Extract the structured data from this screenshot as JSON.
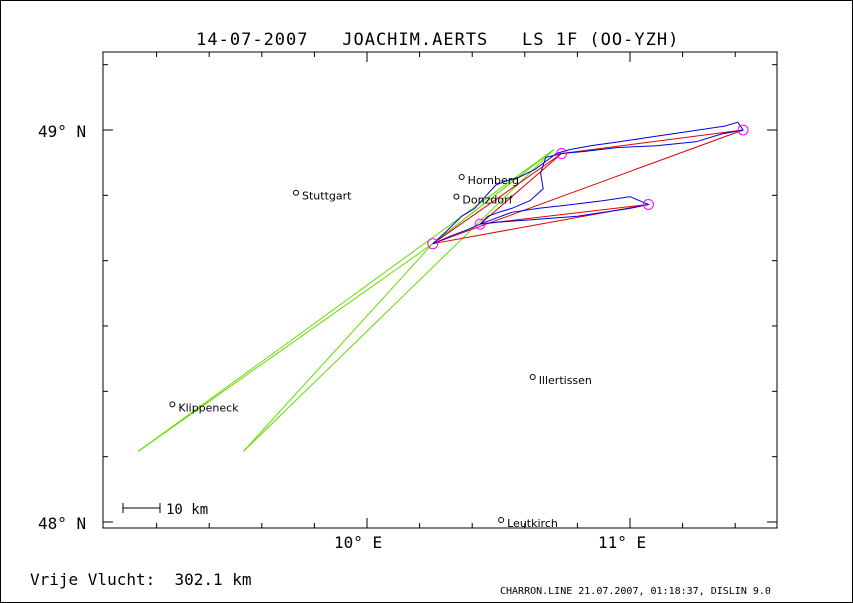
{
  "header": {
    "date": "14-07-2007",
    "pilot": "JOACHIM.AERTS",
    "glider": "LS 1F (OO-YZH)"
  },
  "axes": {
    "lat_labels": [
      "49° N",
      "48° N"
    ],
    "lon_labels": [
      "10° E",
      "11° E"
    ]
  },
  "scale_bar": {
    "label": "10 km"
  },
  "stat": {
    "label": "Vrije Vlucht:",
    "value": "302.1 km"
  },
  "footer": "CHARRON.LINE 21.07.2007, 01:18:37, DISLIN 9.0",
  "colors": {
    "track": "#0000e0",
    "task": "#e00000",
    "free": "#66dd00",
    "turnpoint": "#ff00ff"
  },
  "map_data": {
    "bounds": {
      "lon_min": 9.0,
      "lon_max": 11.55,
      "lat_min": 48.0,
      "lat_max": 49.2
    },
    "towns": [
      {
        "name": "Hornberg",
        "lon": 10.36,
        "lat": 48.88
      },
      {
        "name": "Donzdorf",
        "lon": 10.34,
        "lat": 48.83
      },
      {
        "name": "Stuttgart",
        "lon": 9.73,
        "lat": 48.84
      },
      {
        "name": "Illertissen",
        "lon": 10.63,
        "lat": 48.37
      },
      {
        "name": "Klippeneck",
        "lon": 9.26,
        "lat": 48.3
      },
      {
        "name": "Leutkirch",
        "lon": 10.51,
        "lat": 48.005
      }
    ],
    "turnpoints": [
      {
        "lon": 10.25,
        "lat": 48.71
      },
      {
        "lon": 10.74,
        "lat": 48.94
      },
      {
        "lon": 11.43,
        "lat": 49.0
      },
      {
        "lon": 11.07,
        "lat": 48.81
      },
      {
        "lon": 10.43,
        "lat": 48.76
      }
    ],
    "task_lines": [
      [
        [
          10.25,
          48.71
        ],
        [
          10.74,
          48.94
        ]
      ],
      [
        [
          10.74,
          48.94
        ],
        [
          11.43,
          49.0
        ]
      ],
      [
        [
          11.43,
          49.0
        ],
        [
          10.25,
          48.71
        ]
      ],
      [
        [
          10.25,
          48.71
        ],
        [
          11.07,
          48.81
        ]
      ],
      [
        [
          11.07,
          48.81
        ],
        [
          10.43,
          48.76
        ]
      ],
      [
        [
          10.43,
          48.76
        ],
        [
          10.74,
          48.94
        ]
      ]
    ],
    "free_lines": [
      [
        [
          10.25,
          48.71
        ],
        [
          10.71,
          48.95
        ]
      ],
      [
        [
          10.71,
          48.95
        ],
        [
          9.13,
          48.18
        ]
      ],
      [
        [
          9.13,
          48.18
        ],
        [
          10.25,
          48.71
        ]
      ],
      [
        [
          10.25,
          48.71
        ],
        [
          10.71,
          48.95
        ]
      ],
      [
        [
          10.71,
          48.95
        ],
        [
          9.53,
          48.18
        ]
      ],
      [
        [
          9.53,
          48.18
        ],
        [
          10.25,
          48.71
        ]
      ]
    ],
    "track": [
      [
        10.25,
        48.71
      ],
      [
        10.3,
        48.74
      ],
      [
        10.36,
        48.78
      ],
      [
        10.41,
        48.8
      ],
      [
        10.45,
        48.83
      ],
      [
        10.49,
        48.86
      ],
      [
        10.53,
        48.87
      ],
      [
        10.58,
        48.88
      ],
      [
        10.64,
        48.9
      ],
      [
        10.68,
        48.92
      ],
      [
        10.72,
        48.94
      ],
      [
        10.77,
        48.95
      ],
      [
        10.85,
        48.96
      ],
      [
        10.96,
        48.97
      ],
      [
        11.06,
        48.98
      ],
      [
        11.16,
        48.99
      ],
      [
        11.26,
        49.0
      ],
      [
        11.36,
        49.01
      ],
      [
        11.41,
        49.02
      ],
      [
        11.43,
        49.0
      ],
      [
        11.35,
        48.99
      ],
      [
        11.25,
        48.97
      ],
      [
        11.1,
        48.96
      ],
      [
        10.95,
        48.955
      ],
      [
        10.82,
        48.945
      ],
      [
        10.74,
        48.94
      ],
      [
        10.68,
        48.93
      ],
      [
        10.66,
        48.89
      ],
      [
        10.67,
        48.85
      ],
      [
        10.62,
        48.82
      ],
      [
        10.55,
        48.8
      ],
      [
        10.5,
        48.79
      ],
      [
        10.46,
        48.78
      ],
      [
        10.43,
        48.76
      ],
      [
        10.47,
        48.77
      ],
      [
        10.55,
        48.79
      ],
      [
        10.65,
        48.8
      ],
      [
        10.78,
        48.81
      ],
      [
        10.9,
        48.82
      ],
      [
        11.0,
        48.83
      ],
      [
        11.07,
        48.81
      ],
      [
        11.0,
        48.8
      ],
      [
        10.9,
        48.79
      ],
      [
        10.8,
        48.78
      ],
      [
        10.7,
        48.775
      ],
      [
        10.6,
        48.77
      ],
      [
        10.5,
        48.765
      ],
      [
        10.43,
        48.76
      ],
      [
        10.38,
        48.745
      ],
      [
        10.32,
        48.73
      ],
      [
        10.25,
        48.71
      ]
    ]
  }
}
